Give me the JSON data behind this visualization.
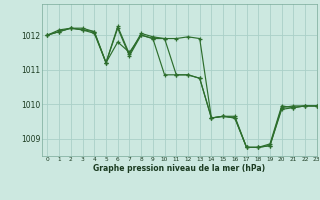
{
  "title": "Graphe pression niveau de la mer (hPa)",
  "background_color": "#cce8e0",
  "grid_color": "#aad0c8",
  "line_color": "#2d6e2d",
  "xlim": [
    -0.5,
    23
  ],
  "ylim": [
    1008.5,
    1012.9
  ],
  "yticks": [
    1009,
    1010,
    1011,
    1012
  ],
  "xticks": [
    0,
    1,
    2,
    3,
    4,
    5,
    6,
    7,
    8,
    9,
    10,
    11,
    12,
    13,
    14,
    15,
    16,
    17,
    18,
    19,
    20,
    21,
    22,
    23
  ],
  "series1_x": [
    0,
    1,
    2,
    3,
    4,
    5,
    6,
    7,
    8,
    9,
    10,
    11,
    12,
    13,
    14,
    15,
    16,
    17,
    18,
    19,
    20,
    21,
    22,
    23
  ],
  "series1_y": [
    1012.0,
    1012.15,
    1012.2,
    1012.15,
    1012.1,
    1011.2,
    1011.8,
    1011.5,
    1012.0,
    1011.9,
    1010.85,
    1010.85,
    1010.85,
    1010.75,
    1009.6,
    1009.65,
    1009.65,
    1008.75,
    1008.75,
    1008.8,
    1009.9,
    1009.95,
    1009.95,
    1009.95
  ],
  "series2_x": [
    0,
    1,
    2,
    3,
    4,
    5,
    6,
    7,
    8,
    9,
    10,
    11,
    12,
    13,
    14,
    15,
    16,
    17,
    18,
    19,
    20,
    21,
    22,
    23
  ],
  "series2_y": [
    1012.0,
    1012.1,
    1012.2,
    1012.2,
    1012.1,
    1011.2,
    1012.25,
    1011.45,
    1012.05,
    1011.95,
    1011.9,
    1011.9,
    1011.95,
    1011.9,
    1009.6,
    1009.65,
    1009.6,
    1008.75,
    1008.75,
    1008.85,
    1009.95,
    1009.9,
    1009.95,
    1009.95
  ],
  "series3_x": [
    0,
    1,
    2,
    3,
    4,
    5,
    6,
    7,
    8,
    9,
    10,
    11,
    12,
    13,
    14,
    15,
    16,
    17,
    18,
    19,
    20,
    21,
    22,
    23
  ],
  "series3_y": [
    1012.0,
    1012.1,
    1012.2,
    1012.15,
    1012.05,
    1011.2,
    1012.2,
    1011.4,
    1012.0,
    1011.9,
    1011.9,
    1010.85,
    1010.85,
    1010.75,
    1009.6,
    1009.65,
    1009.6,
    1008.75,
    1008.75,
    1008.8,
    1009.85,
    1009.9,
    1009.95,
    1009.95
  ],
  "figwidth": 3.2,
  "figheight": 2.0,
  "dpi": 100
}
